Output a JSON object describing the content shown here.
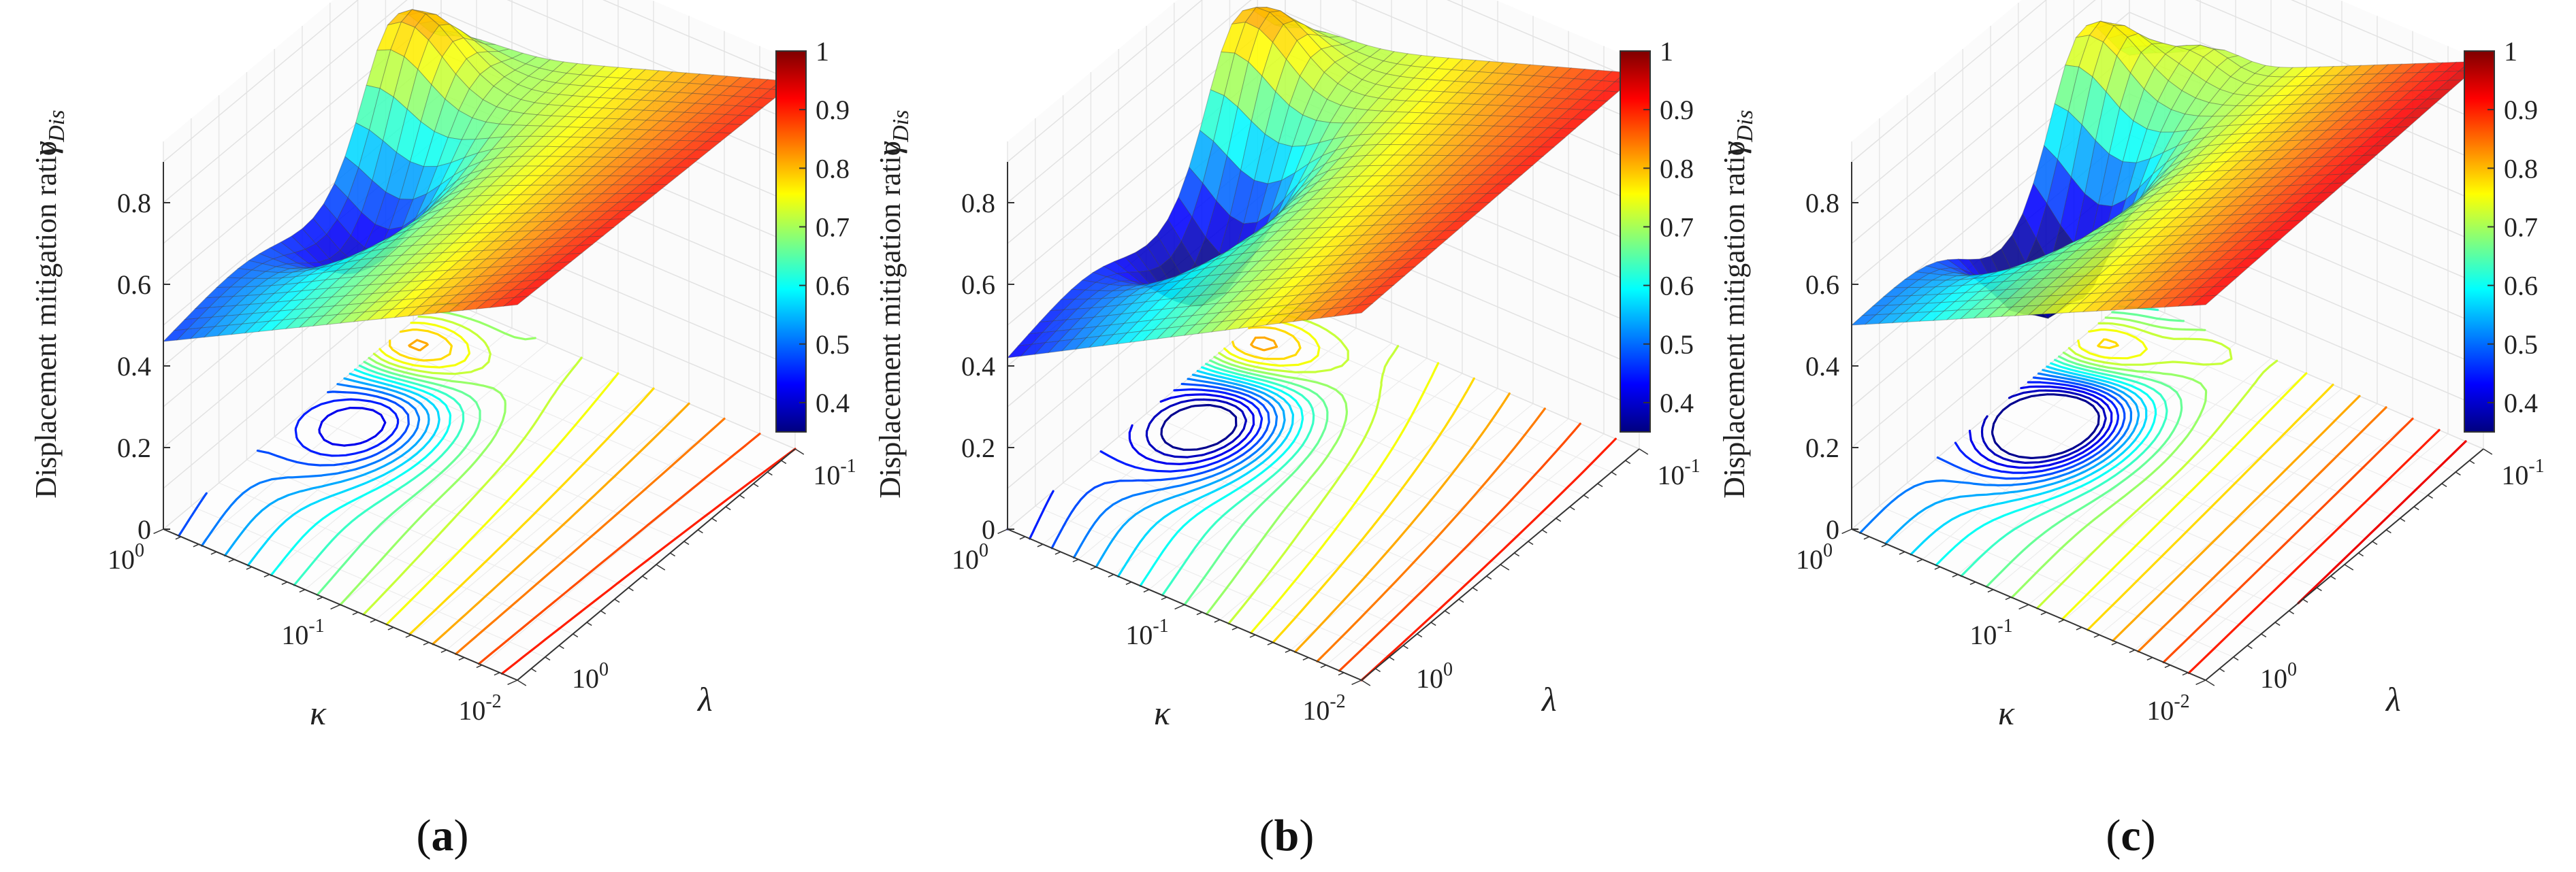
{
  "colorbar": {
    "colors": [
      "#00007f",
      "#0000ff",
      "#007fff",
      "#00ffff",
      "#7fff7f",
      "#ffff00",
      "#ff7f00",
      "#ff0000",
      "#7f0000"
    ],
    "range": [
      0.35,
      1.0
    ]
  },
  "chart_data": [
    {
      "type": "surface3d",
      "panel_label_open": "(",
      "panel_label": "a",
      "panel_label_close": ")",
      "zlabel": "Displacement mitigation ratio",
      "zlabel_symbol": "γ",
      "zlabel_sub": "Dis",
      "xlabel": "κ",
      "ylabel": "λ",
      "z_ticks": [
        "0",
        "0.2",
        "0.4",
        "0.6",
        "0.8"
      ],
      "kappa_ticks": [
        {
          "base": "10",
          "exp": "0"
        },
        {
          "base": "10",
          "exp": "-1"
        },
        {
          "base": "10",
          "exp": "-2"
        }
      ],
      "lambda_ticks": [
        {
          "base": "10",
          "exp": "0"
        },
        {
          "base": "10",
          "exp": "-1"
        }
      ],
      "colorbar_ticks": [
        "1",
        "0.9",
        "0.8",
        "0.7",
        "0.6",
        "0.5",
        "0.4"
      ],
      "surface_corners": {
        "kappa_1_lambda_1": 0.46,
        "kappa_001_lambda_1": 0.92,
        "kappa_1_lambda_01": 0.6,
        "kappa_001_lambda_01": 0.9
      },
      "peak_value": 0.97,
      "min_value": 0.46
    },
    {
      "type": "surface3d",
      "panel_label_open": "(",
      "panel_label": "b",
      "panel_label_close": ")",
      "zlabel": "Displacement mitigation ratio",
      "zlabel_symbol": "γ",
      "zlabel_sub": "Dis",
      "xlabel": "κ",
      "ylabel": "λ",
      "z_ticks": [
        "0",
        "0.2",
        "0.4",
        "0.6",
        "0.8"
      ],
      "kappa_ticks": [
        {
          "base": "10",
          "exp": "0"
        },
        {
          "base": "10",
          "exp": "-1"
        },
        {
          "base": "10",
          "exp": "-2"
        }
      ],
      "lambda_ticks": [
        {
          "base": "10",
          "exp": "0"
        },
        {
          "base": "10",
          "exp": "-1"
        }
      ],
      "colorbar_ticks": [
        "1",
        "0.9",
        "0.8",
        "0.7",
        "0.6",
        "0.5",
        "0.4"
      ],
      "surface_corners": {
        "kappa_1_lambda_1": 0.42,
        "kappa_001_lambda_1": 0.9,
        "kappa_1_lambda_01": 0.62,
        "kappa_001_lambda_01": 0.92
      },
      "peak_value": 0.97,
      "min_value": 0.42
    },
    {
      "type": "surface3d",
      "panel_label_open": "(",
      "panel_label": "c",
      "panel_label_close": ")",
      "zlabel": "Displacement mitigation ratio",
      "zlabel_symbol": "γ",
      "zlabel_sub": "Dis",
      "xlabel": "κ",
      "ylabel": "λ",
      "z_ticks": [
        "0",
        "0.2",
        "0.4",
        "0.6",
        "0.8"
      ],
      "kappa_ticks": [
        {
          "base": "10",
          "exp": "0"
        },
        {
          "base": "10",
          "exp": "-1"
        },
        {
          "base": "10",
          "exp": "-2"
        }
      ],
      "lambda_ticks": [
        {
          "base": "10",
          "exp": "0"
        },
        {
          "base": "10",
          "exp": "-1"
        }
      ],
      "colorbar_ticks": [
        "1",
        "0.9",
        "0.8",
        "0.7",
        "0.6",
        "0.5",
        "0.4"
      ],
      "surface_corners": {
        "kappa_1_lambda_1": 0.5,
        "kappa_001_lambda_1": 0.92,
        "kappa_1_lambda_01": 0.55,
        "kappa_001_lambda_01": 0.95
      },
      "peak_value": 0.98,
      "min_value": 0.38
    }
  ]
}
